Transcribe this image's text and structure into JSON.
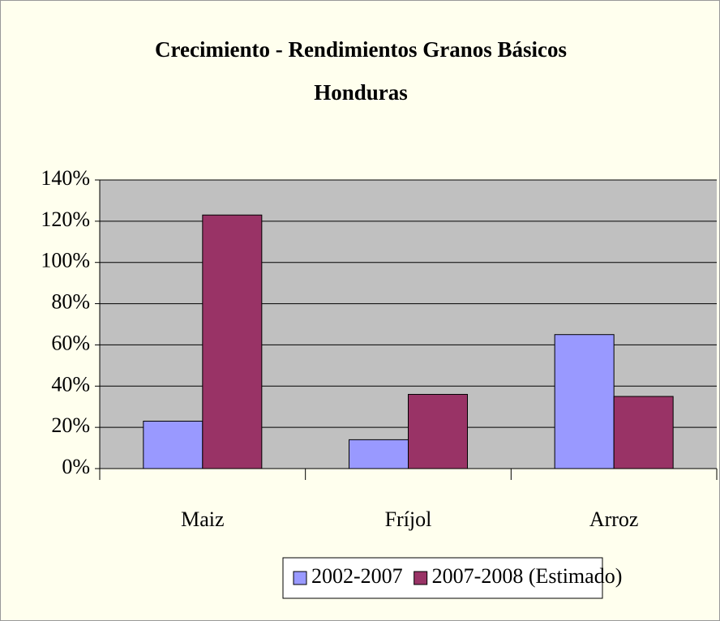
{
  "chart_data": {
    "type": "bar",
    "title": "Crecimiento - Rendimientos Granos Básicos",
    "subtitle": "Honduras",
    "categories": [
      "Maiz",
      "Fríjol",
      "Arroz"
    ],
    "series": [
      {
        "name": "2002-2007",
        "color": "#9999ff",
        "values": [
          23,
          14,
          65
        ]
      },
      {
        "name": "2007-2008 (Estimado)",
        "color": "#993366",
        "values": [
          123,
          36,
          35
        ]
      }
    ],
    "ylim": [
      0,
      140
    ],
    "yticks": [
      {
        "value": 0,
        "label": "0%"
      },
      {
        "value": 20,
        "label": "20%"
      },
      {
        "value": 40,
        "label": "40%"
      },
      {
        "value": 60,
        "label": "60%"
      },
      {
        "value": 80,
        "label": "80%"
      },
      {
        "value": 100,
        "label": "100%"
      },
      {
        "value": 120,
        "label": "120%"
      },
      {
        "value": 140,
        "label": "140%"
      }
    ],
    "grid": true,
    "legend": "bottom"
  }
}
